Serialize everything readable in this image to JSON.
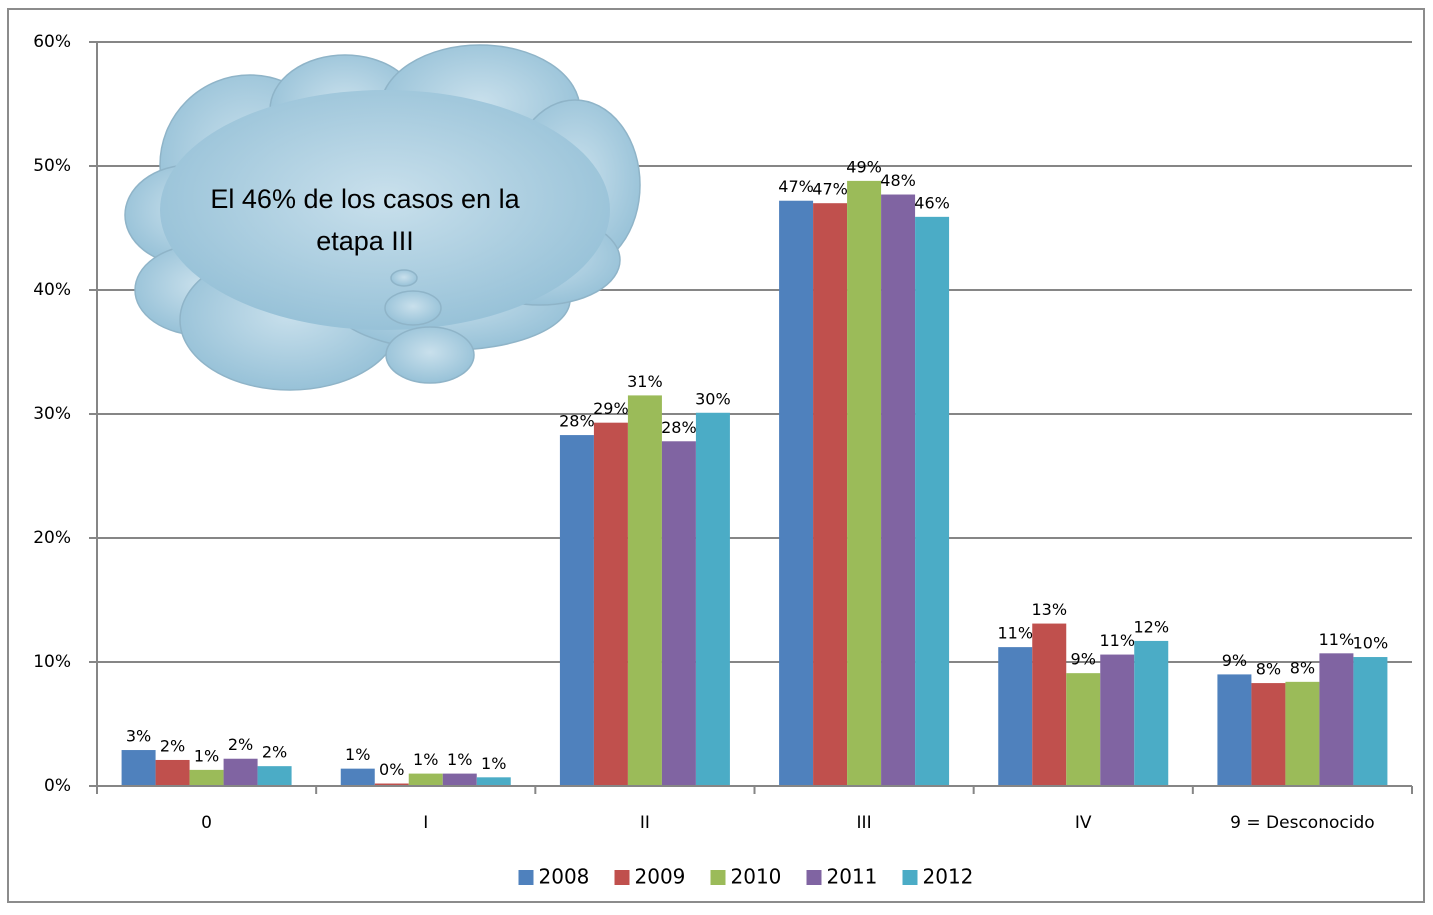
{
  "chart_data": {
    "type": "bar",
    "categories": [
      "0",
      "I",
      "II",
      "III",
      "IV",
      "9 = Desconocido"
    ],
    "series": [
      {
        "name": "2008",
        "color": "#4f81bd",
        "values": [
          2.9,
          1.4,
          28.3,
          47.2,
          11.2,
          9.0
        ],
        "value_labels": [
          "3%",
          "1%",
          "28%",
          "47%",
          "11%",
          "9%"
        ]
      },
      {
        "name": "2009",
        "color": "#c0504d",
        "values": [
          2.1,
          0.2,
          29.3,
          47.0,
          13.1,
          8.3
        ],
        "value_labels": [
          "2%",
          "0%",
          "29%",
          "47%",
          "13%",
          "8%"
        ]
      },
      {
        "name": "2010",
        "color": "#9bbb59",
        "values": [
          1.3,
          1.0,
          31.5,
          48.8,
          9.1,
          8.4
        ],
        "value_labels": [
          "1%",
          "1%",
          "31%",
          "49%",
          "9%",
          "8%"
        ]
      },
      {
        "name": "2011",
        "color": "#8064a2",
        "values": [
          2.2,
          1.0,
          27.8,
          47.7,
          10.6,
          10.7
        ],
        "value_labels": [
          "2%",
          "1%",
          "28%",
          "48%",
          "11%",
          "11%"
        ]
      },
      {
        "name": "2012",
        "color": "#4bacc6",
        "values": [
          1.6,
          0.7,
          30.1,
          45.9,
          11.7,
          10.4
        ],
        "value_labels": [
          "2%",
          "1%",
          "30%",
          "46%",
          "12%",
          "10%"
        ]
      }
    ],
    "ylim": [
      0,
      60
    ],
    "yticks": [
      {
        "value": 0,
        "label": "0%"
      },
      {
        "value": 10,
        "label": "10%"
      },
      {
        "value": 20,
        "label": "20%"
      },
      {
        "value": 30,
        "label": "30%"
      },
      {
        "value": 40,
        "label": "40%"
      },
      {
        "value": 50,
        "label": "50%"
      },
      {
        "value": 60,
        "label": "60%"
      }
    ],
    "grid": true,
    "legend": "bottom",
    "annotation": "El 46% de los casos en la etapa III"
  }
}
